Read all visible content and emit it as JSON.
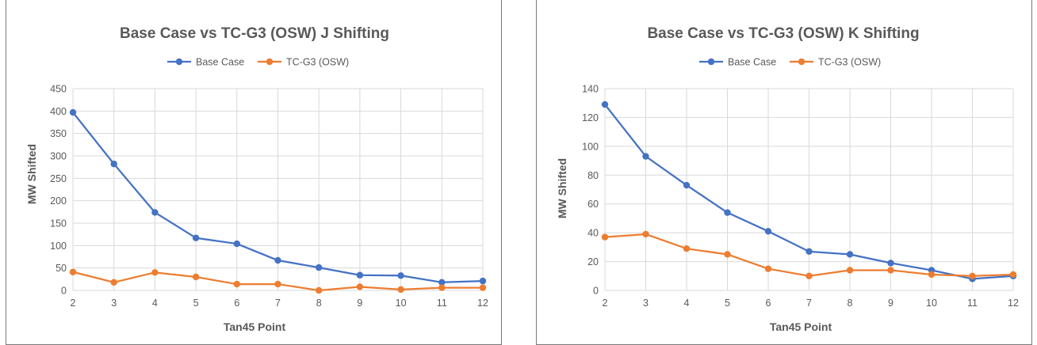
{
  "chart_data": [
    {
      "type": "line",
      "title": "Base Case vs TC-G3 (OSW) J Shifting",
      "xlabel": "Tan45 Point",
      "ylabel": "MW Shifted",
      "categories": [
        "2",
        "3",
        "4",
        "5",
        "6",
        "7",
        "8",
        "9",
        "10",
        "11",
        "12"
      ],
      "ylim": [
        0,
        450
      ],
      "yticks": [
        "0",
        "50",
        "100",
        "150",
        "200",
        "250",
        "300",
        "350",
        "400",
        "450"
      ],
      "grid": true,
      "legend_position": "top",
      "series": [
        {
          "name": "Base Case",
          "color": "#4472c4",
          "values": [
            397,
            282,
            174,
            117,
            104,
            67,
            51,
            34,
            33,
            18,
            21
          ]
        },
        {
          "name": "TC-G3 (OSW)",
          "color": "#ed7d31",
          "values": [
            41,
            18,
            40,
            30,
            14,
            14,
            0,
            8,
            2,
            6,
            6
          ]
        }
      ]
    },
    {
      "type": "line",
      "title": "Base Case vs TC-G3 (OSW) K Shifting",
      "xlabel": "Tan45 Point",
      "ylabel": "MW Shifted",
      "categories": [
        "2",
        "3",
        "4",
        "5",
        "6",
        "7",
        "8",
        "9",
        "10",
        "11",
        "12"
      ],
      "ylim": [
        0,
        140
      ],
      "yticks": [
        "0",
        "20",
        "40",
        "60",
        "80",
        "100",
        "120",
        "140"
      ],
      "grid": true,
      "legend_position": "top",
      "series": [
        {
          "name": "Base Case",
          "color": "#4472c4",
          "values": [
            129,
            93,
            73,
            54,
            41,
            27,
            25,
            19,
            14,
            8,
            10
          ]
        },
        {
          "name": "TC-G3 (OSW)",
          "color": "#ed7d31",
          "values": [
            37,
            39,
            29,
            25,
            15,
            10,
            14,
            14,
            11,
            10,
            11
          ]
        }
      ]
    }
  ]
}
